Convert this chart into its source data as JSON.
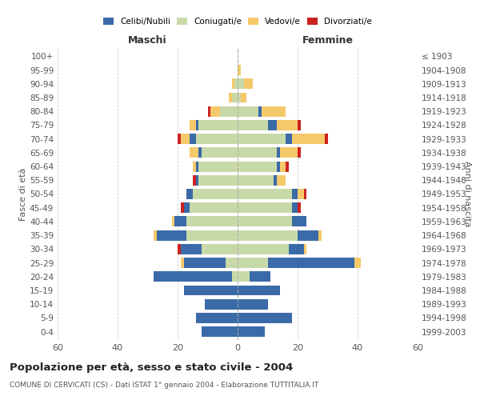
{
  "age_groups": [
    "100+",
    "95-99",
    "90-94",
    "85-89",
    "80-84",
    "75-79",
    "70-74",
    "65-69",
    "60-64",
    "55-59",
    "50-54",
    "45-49",
    "40-44",
    "35-39",
    "30-34",
    "25-29",
    "20-24",
    "15-19",
    "10-14",
    "5-9",
    "0-4"
  ],
  "birth_years": [
    "≤ 1903",
    "1904-1908",
    "1909-1913",
    "1914-1918",
    "1919-1923",
    "1924-1928",
    "1929-1933",
    "1934-1938",
    "1939-1943",
    "1944-1948",
    "1949-1953",
    "1954-1958",
    "1959-1963",
    "1964-1968",
    "1969-1973",
    "1974-1978",
    "1979-1983",
    "1984-1988",
    "1989-1993",
    "1994-1998",
    "1999-2003"
  ],
  "male_celibe": [
    0,
    0,
    0,
    0,
    0,
    1,
    2,
    1,
    1,
    1,
    2,
    2,
    4,
    10,
    7,
    14,
    26,
    18,
    11,
    14,
    12
  ],
  "male_coniugato": [
    0,
    0,
    1,
    2,
    6,
    13,
    14,
    12,
    13,
    13,
    15,
    16,
    17,
    17,
    12,
    4,
    2,
    0,
    0,
    0,
    0
  ],
  "male_vedovo": [
    0,
    0,
    1,
    1,
    3,
    2,
    3,
    3,
    1,
    0,
    0,
    0,
    1,
    1,
    0,
    1,
    0,
    0,
    0,
    0,
    0
  ],
  "male_divorziato": [
    0,
    0,
    0,
    0,
    1,
    0,
    1,
    0,
    0,
    1,
    0,
    1,
    0,
    0,
    1,
    0,
    0,
    0,
    0,
    0,
    0
  ],
  "female_celibe": [
    0,
    0,
    0,
    0,
    1,
    3,
    2,
    1,
    1,
    1,
    2,
    2,
    5,
    7,
    5,
    29,
    7,
    14,
    10,
    18,
    9
  ],
  "female_coniugato": [
    0,
    0,
    2,
    1,
    7,
    10,
    16,
    13,
    13,
    12,
    18,
    18,
    18,
    20,
    17,
    10,
    4,
    0,
    0,
    0,
    0
  ],
  "female_vedovo": [
    0,
    1,
    3,
    2,
    8,
    7,
    11,
    6,
    2,
    3,
    2,
    0,
    0,
    1,
    1,
    2,
    0,
    0,
    0,
    0,
    0
  ],
  "female_divorziato": [
    0,
    0,
    0,
    0,
    0,
    1,
    1,
    1,
    1,
    0,
    1,
    1,
    0,
    0,
    0,
    0,
    0,
    0,
    0,
    0,
    0
  ],
  "colors": {
    "celibe": "#3a6aa8",
    "coniugato": "#c8d9a8",
    "vedovo": "#f5c96a",
    "divorziato": "#cc2222"
  },
  "xlim": 60,
  "title": "Popolazione per età, sesso e stato civile - 2004",
  "subtitle": "COMUNE DI CERVICATI (CS) - Dati ISTAT 1° gennaio 2004 - Elaborazione TUTTITALIA.IT",
  "ylabel_left": "Fasce di età",
  "ylabel_right": "Anni di nascita",
  "xlabel_left": "Maschi",
  "xlabel_right": "Femmine"
}
